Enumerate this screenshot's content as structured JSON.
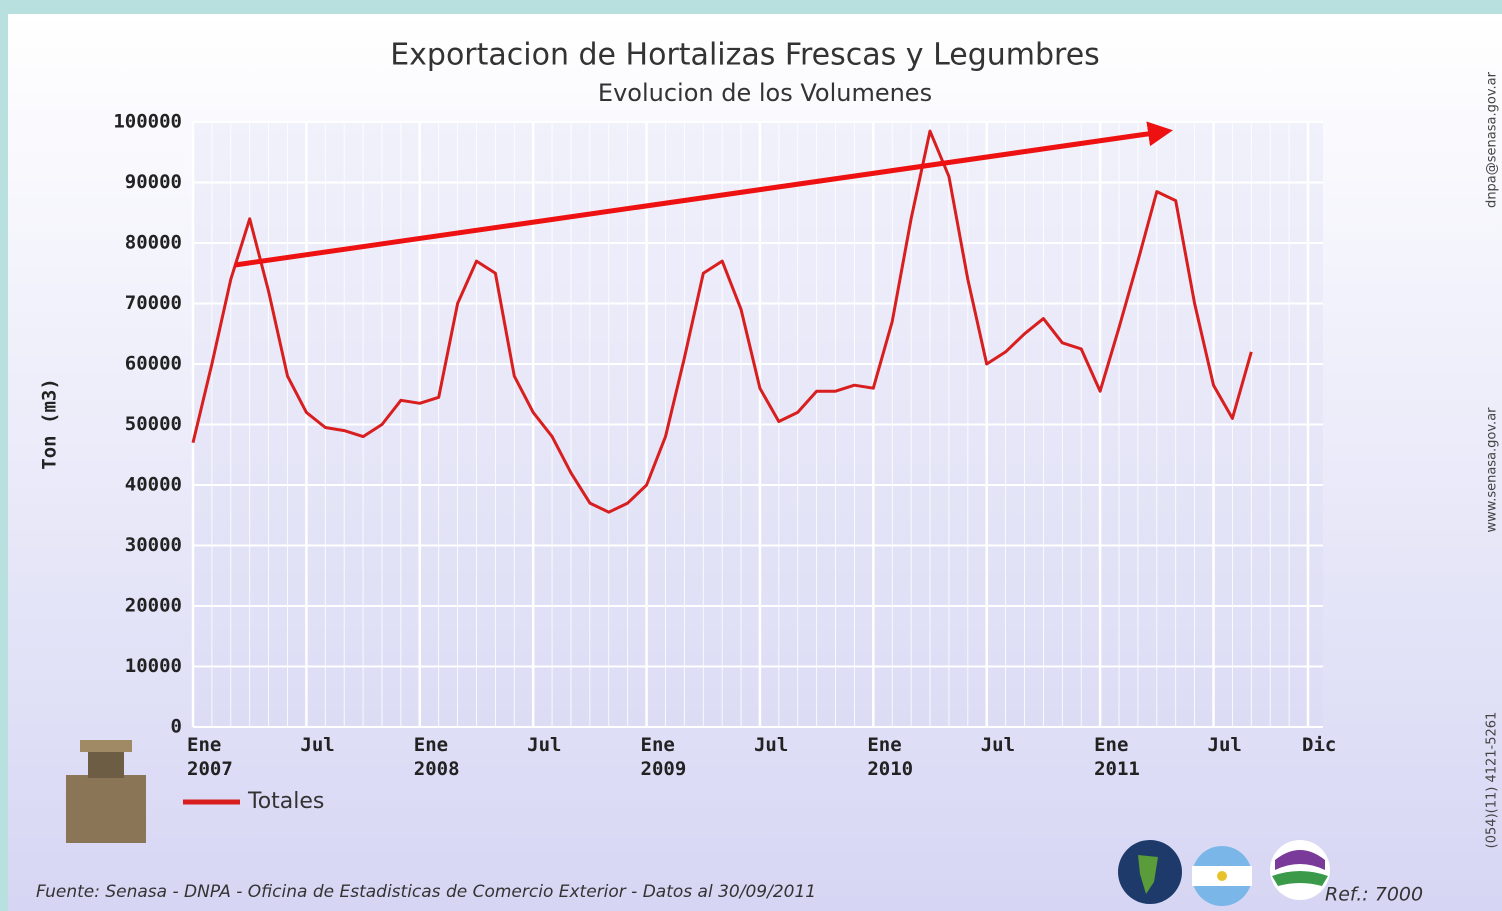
{
  "chart_data": {
    "type": "line",
    "title": "Exportacion de Hortalizas Frescas y Legumbres",
    "subtitle": "Evolucion de los Volumenes",
    "y_label": "Ton (m3)",
    "categories": [
      "Ene 2007",
      null,
      null,
      null,
      null,
      null,
      "Jul",
      null,
      null,
      null,
      null,
      null,
      "Ene 2008",
      null,
      null,
      null,
      null,
      null,
      "Jul",
      null,
      null,
      null,
      null,
      null,
      "Ene 2009",
      null,
      null,
      null,
      null,
      null,
      "Jul",
      null,
      null,
      null,
      null,
      null,
      "Ene 2010",
      null,
      null,
      null,
      null,
      null,
      "Jul",
      null,
      null,
      null,
      null,
      null,
      "Ene 2011",
      null,
      null,
      null,
      null,
      null,
      "Jul",
      null,
      null,
      null,
      null,
      "Dic"
    ],
    "series": [
      {
        "name": "Totales",
        "color": "#d81e1e",
        "values": [
          47000,
          60000,
          74000,
          84000,
          72000,
          58000,
          52000,
          49500,
          49000,
          48000,
          50000,
          54000,
          53500,
          54500,
          70000,
          77000,
          75000,
          58000,
          52000,
          48000,
          42000,
          37000,
          35500,
          37000,
          40000,
          48000,
          61000,
          75000,
          77000,
          69000,
          56000,
          50500,
          52000,
          55500,
          55500,
          56500,
          56000,
          67000,
          84000,
          98500,
          91000,
          74000,
          60000,
          62000,
          65000,
          67500,
          63500,
          62500,
          55500,
          66000,
          77000,
          88500,
          87000,
          70000,
          56500,
          51000,
          62000,
          null,
          null,
          null
        ]
      }
    ],
    "ylim": [
      0,
      100000
    ],
    "yticks": [
      0,
      10000,
      20000,
      30000,
      40000,
      50000,
      60000,
      70000,
      80000,
      90000,
      100000
    ],
    "grid": true,
    "source": "Fuente: Senasa - DNPA - Oficina de Estadisticas de Comercio Exterior - Datos al 30/09/2011",
    "reference": "Ref.: 7000",
    "side_texts": [
      "(054)(11) 4121-5261",
      "www.senasa.gov.ar",
      "dnpa@senasa.gov.ar"
    ]
  }
}
